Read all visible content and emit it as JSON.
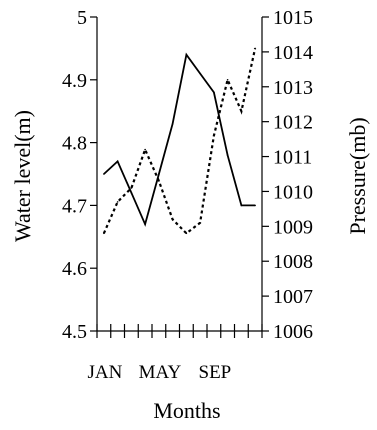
{
  "chart_data": {
    "type": "line",
    "xlabel": "Months",
    "ylabel_left": "Water level(m)",
    "ylabel_right": "Pressure(mb)",
    "x_tick_labels": [
      "JAN",
      "MAY",
      "SEP"
    ],
    "x_tick_label_months": [
      1,
      5,
      9
    ],
    "x_month_count": 12,
    "ylim_left": [
      4.5,
      5.0
    ],
    "yticks_left": [
      "4.5",
      "4.6",
      "4.7",
      "4.8",
      "4.9",
      "5"
    ],
    "ylim_right": [
      1006,
      1015
    ],
    "yticks_right": [
      "1006",
      "1007",
      "1008",
      "1009",
      "1010",
      "1011",
      "1012",
      "1013",
      "1014",
      "1015"
    ],
    "grid": false,
    "series": [
      {
        "axis": "left",
        "style": "solid",
        "x": [
          1,
          2,
          3,
          4,
          5,
          6,
          7,
          8,
          9,
          10,
          11,
          12
        ],
        "values": [
          4.75,
          4.77,
          4.72,
          4.67,
          4.75,
          4.83,
          4.94,
          4.91,
          4.88,
          4.78,
          4.7,
          4.7
        ]
      },
      {
        "axis": "right",
        "style": "dotted",
        "x": [
          1,
          2,
          3,
          4,
          5,
          6,
          7,
          8,
          9,
          10,
          11,
          12
        ],
        "values": [
          1008.8,
          1009.7,
          1010.1,
          1011.2,
          1010.3,
          1009.2,
          1008.8,
          1009.1,
          1011.6,
          1013.2,
          1012.3,
          1014.1
        ]
      }
    ]
  }
}
